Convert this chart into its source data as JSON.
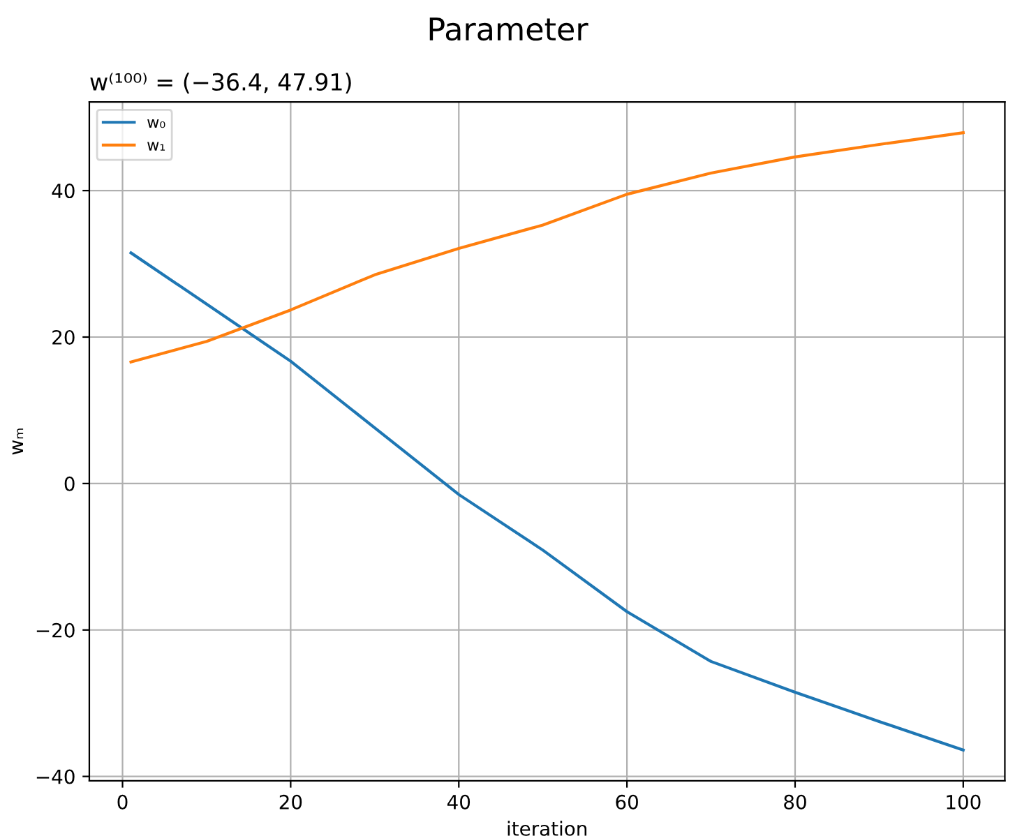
{
  "chart_data": {
    "type": "line",
    "title": "Parameter",
    "subtitle": "w⁽¹⁰⁰⁾ = (−36.4, 47.91)",
    "xlabel": "iteration",
    "ylabel": "wₘ",
    "xlim": [
      -3.95,
      104.95
    ],
    "ylim": [
      -40.6,
      52.1
    ],
    "xticks": [
      0,
      20,
      40,
      60,
      80,
      100
    ],
    "yticks": [
      {
        "value": -40,
        "label": "−40"
      },
      {
        "value": -20,
        "label": "−20"
      },
      0,
      20,
      40
    ],
    "grid": true,
    "legend": "top left",
    "series": [
      {
        "name": "w₀",
        "color": "#1f77b4",
        "x": [
          1,
          10,
          20,
          30,
          40,
          50,
          60,
          70,
          80,
          90,
          100
        ],
        "values": [
          31.5,
          24.5,
          16.7,
          7.6,
          -1.5,
          -9.1,
          -17.5,
          -24.3,
          -28.5,
          -32.5,
          -36.4
        ]
      },
      {
        "name": "w₁",
        "color": "#ff7f0e",
        "x": [
          1,
          10,
          20,
          30,
          40,
          50,
          60,
          70,
          80,
          90,
          100
        ],
        "values": [
          16.6,
          19.4,
          23.7,
          28.5,
          32.1,
          35.3,
          39.5,
          42.4,
          44.6,
          46.3,
          47.91
        ]
      }
    ]
  }
}
